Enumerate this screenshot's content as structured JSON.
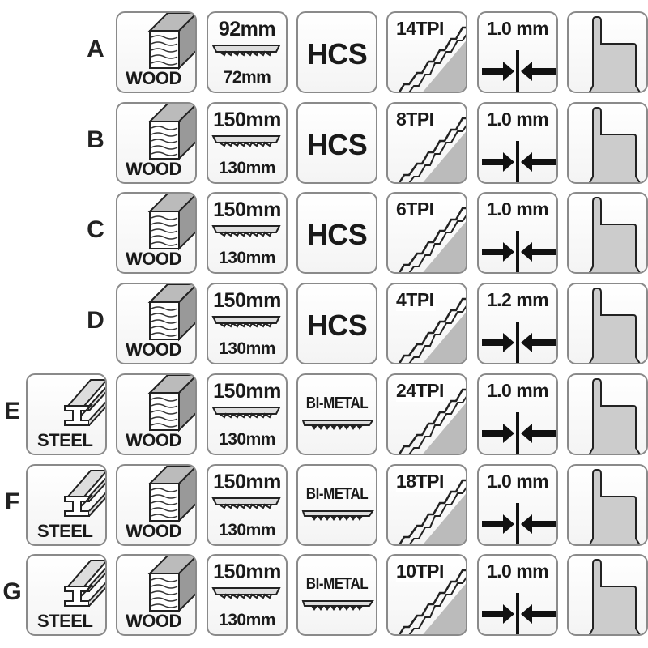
{
  "colors": {
    "border": "#8a8a8a",
    "fill": "#c8c8c8",
    "text": "#1a1a1a"
  },
  "icons": [
    "steel-beam-icon",
    "wood-block-icon",
    "blade-length-icon",
    "blade-teeth-icon",
    "tpi-teeth-icon",
    "thickness-arrows-icon",
    "t-shank-icon"
  ],
  "rows": [
    {
      "letter": "A",
      "materials": [
        "WOOD"
      ],
      "total_length": "92mm",
      "working_length": "72mm",
      "blade_material": "HCS",
      "tpi": "14TPI",
      "thickness": "1.0 mm"
    },
    {
      "letter": "B",
      "materials": [
        "WOOD"
      ],
      "total_length": "150mm",
      "working_length": "130mm",
      "blade_material": "HCS",
      "tpi": "8TPI",
      "thickness": "1.0 mm"
    },
    {
      "letter": "C",
      "materials": [
        "WOOD"
      ],
      "total_length": "150mm",
      "working_length": "130mm",
      "blade_material": "HCS",
      "tpi": "6TPI",
      "thickness": "1.0 mm"
    },
    {
      "letter": "D",
      "materials": [
        "WOOD"
      ],
      "total_length": "150mm",
      "working_length": "130mm",
      "blade_material": "HCS",
      "tpi": "4TPI",
      "thickness": "1.2 mm"
    },
    {
      "letter": "E",
      "materials": [
        "STEEL",
        "WOOD"
      ],
      "total_length": "150mm",
      "working_length": "130mm",
      "blade_material": "BI-METAL",
      "tpi": "24TPI",
      "thickness": "1.0 mm"
    },
    {
      "letter": "F",
      "materials": [
        "STEEL",
        "WOOD"
      ],
      "total_length": "150mm",
      "working_length": "130mm",
      "blade_material": "BI-METAL",
      "tpi": "18TPI",
      "thickness": "1.0 mm"
    },
    {
      "letter": "G",
      "materials": [
        "STEEL",
        "WOOD"
      ],
      "total_length": "150mm",
      "working_length": "130mm",
      "blade_material": "BI-METAL",
      "tpi": "10TPI",
      "thickness": "1.0 mm"
    }
  ]
}
